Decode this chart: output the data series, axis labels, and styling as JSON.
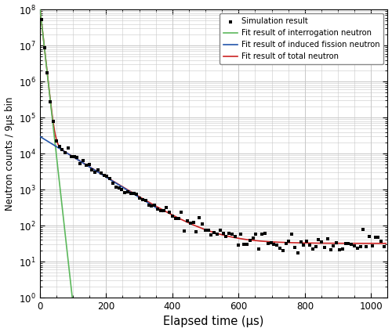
{
  "title": "",
  "xlabel": "Elapsed time (μs)",
  "ylabel": "Neutron counts / 9μs bin",
  "xlim": [
    0,
    1050
  ],
  "ylim_log": [
    1,
    100000000.0
  ],
  "x_ticks": [
    0,
    200,
    400,
    600,
    800,
    1000
  ],
  "legend_labels": [
    "Simulation result",
    "Fit result of interrogation neutron",
    "Fit result of induced fission neutron",
    "Fit result of total neutron"
  ],
  "legend_colors": [
    "black",
    "#5cb85c",
    "#2255aa",
    "#cc2222"
  ],
  "fit_interrog": {
    "A": 120000000.0,
    "lambda": 0.19,
    "x_start": 0,
    "x_end": 112
  },
  "fit_fission": {
    "A": 30000.0,
    "lambda": 0.013,
    "x_start": 0,
    "x_end": 370
  },
  "fit_total": {
    "A1": 120000000.0,
    "lambda1": 0.19,
    "A2": 30000.0,
    "lambda2": 0.013,
    "C": 32,
    "x_start": 0,
    "x_end": 1045
  },
  "background_color": "#ffffff",
  "grid_color": "#c8c8c8",
  "sim_dot_color": "black",
  "sim_dot_size": 5,
  "seed": 12
}
